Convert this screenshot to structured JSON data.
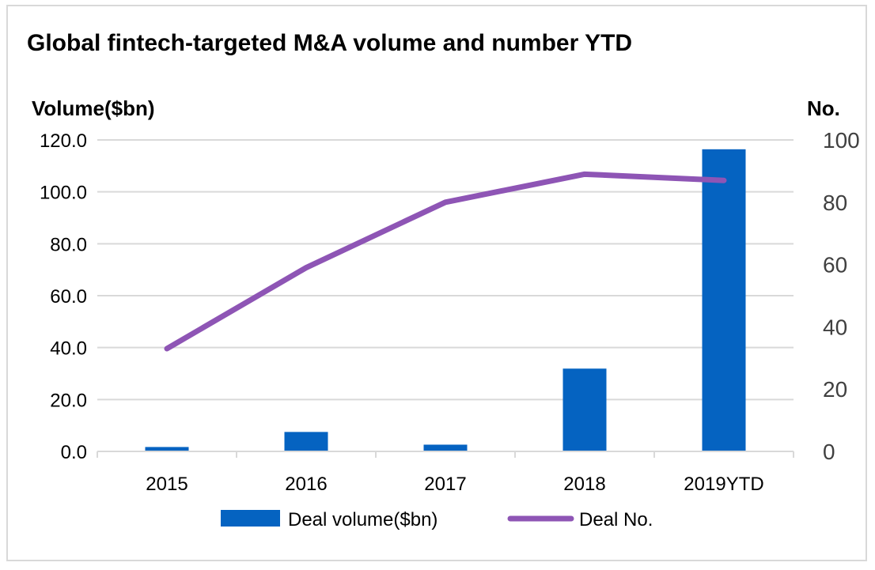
{
  "chart_data": {
    "type": "bar+line",
    "title": "Global fintech-targeted M&A volume and number YTD",
    "categories": [
      "2015",
      "2016",
      "2017",
      "2018",
      "2019YTD"
    ],
    "y_left_label": "Volume($bn)",
    "y_right_label": "No.",
    "y_left_ticks": [
      "0.0",
      "20.0",
      "40.0",
      "60.0",
      "80.0",
      "100.0",
      "120.0"
    ],
    "y_right_ticks": [
      "0",
      "20",
      "40",
      "60",
      "80",
      "100"
    ],
    "ylim_left": [
      0,
      120
    ],
    "ylim_right": [
      0,
      100
    ],
    "grid": true,
    "legend_position": "bottom",
    "series": [
      {
        "name": "Deal volume($bn)",
        "type": "bar",
        "axis": "left",
        "color": "#0563C1",
        "values": [
          1.7,
          7.5,
          2.6,
          31.9,
          116.4
        ]
      },
      {
        "name": "Deal No.",
        "type": "line",
        "axis": "right",
        "color": "#8E55B5",
        "values": [
          33,
          59,
          80,
          89,
          87
        ]
      }
    ]
  }
}
